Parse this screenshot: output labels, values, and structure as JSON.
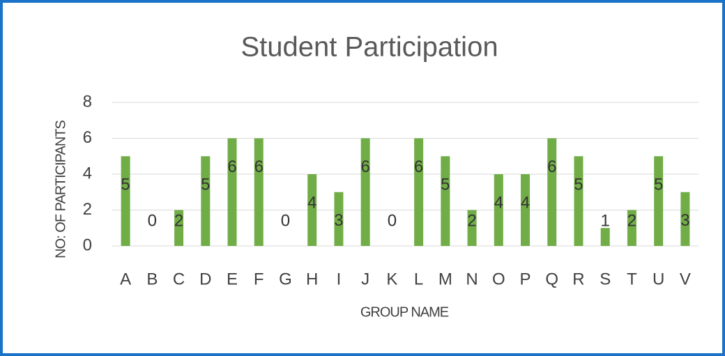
{
  "chart_data": {
    "type": "bar",
    "title": "Student Participation",
    "x_label": "GROUP NAME",
    "y_label": "NO: OF PARTICIPANTS",
    "categories": [
      "A",
      "B",
      "C",
      "D",
      "E",
      "F",
      "G",
      "H",
      "I",
      "J",
      "K",
      "L",
      "M",
      "N",
      "O",
      "P",
      "Q",
      "R",
      "S",
      "T",
      "U",
      "V"
    ],
    "values": [
      5,
      0,
      2,
      5,
      6,
      6,
      0,
      4,
      3,
      6,
      0,
      6,
      5,
      2,
      4,
      4,
      6,
      5,
      1,
      2,
      5,
      3
    ],
    "color": "#70ad47",
    "ylim": [
      0,
      8
    ],
    "yticks": [
      0,
      2,
      4,
      6,
      8
    ],
    "grid": true
  }
}
